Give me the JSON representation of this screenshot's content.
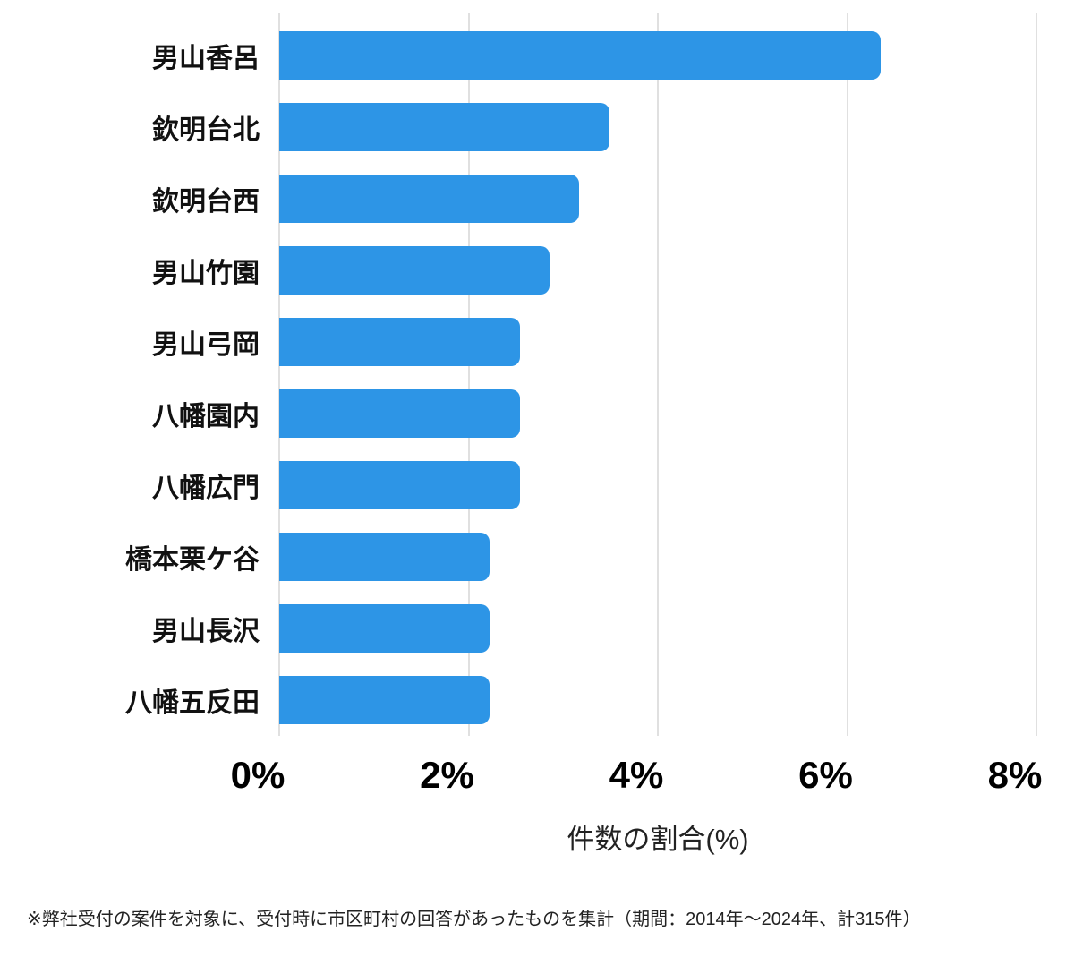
{
  "chart_data": {
    "type": "bar",
    "orientation": "horizontal",
    "categories": [
      "男山香呂",
      "欽明台北",
      "欽明台西",
      "男山竹園",
      "男山弓岡",
      "八幡園内",
      "八幡広門",
      "橋本栗ケ谷",
      "男山長沢",
      "八幡五反田"
    ],
    "values": [
      6.35,
      3.49,
      3.17,
      2.86,
      2.54,
      2.54,
      2.54,
      2.22,
      2.22,
      2.22
    ],
    "xlabel": "件数の割合(%)",
    "xlim": [
      0,
      8
    ],
    "x_ticks": [
      {
        "label": "0%",
        "value": 0
      },
      {
        "label": "2%",
        "value": 2
      },
      {
        "label": "4%",
        "value": 4
      },
      {
        "label": "6%",
        "value": 6
      },
      {
        "label": "8%",
        "value": 8
      }
    ],
    "grid": "vertical",
    "legend": "none",
    "bar_color": "#2d95e6",
    "gridline_color": "#e0e0e0"
  },
  "footnote": "※弊社受付の案件を対象に、受付時に市区町村の回答があったものを集計（期間：2014年〜2024年、計315件）"
}
